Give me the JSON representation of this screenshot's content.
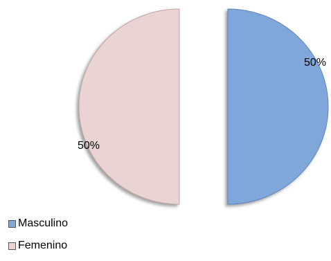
{
  "chart_data": {
    "type": "pie",
    "categories": [
      "Masculino",
      "Femenino"
    ],
    "values": [
      50,
      50
    ],
    "data_labels": [
      "50%",
      "50%"
    ],
    "colors": [
      "#7fa7d9",
      "#ead3d3"
    ],
    "exploded": true,
    "start_angle": "12 o'clock",
    "direction": "clockwise",
    "legend_position": "bottom-left"
  }
}
